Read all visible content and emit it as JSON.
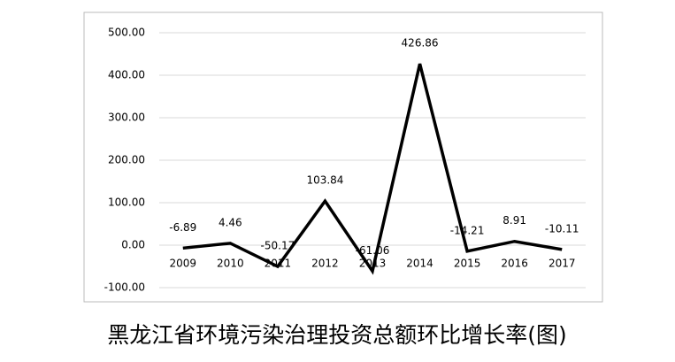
{
  "chart_data": {
    "type": "line",
    "title": "黑龙江省环境污染治理投资总额环比增长率(图)",
    "categories": [
      "2009",
      "2010",
      "2011",
      "2012",
      "2013",
      "2014",
      "2015",
      "2016",
      "2017"
    ],
    "values": [
      -6.89,
      4.46,
      -50.17,
      103.84,
      -61.06,
      426.86,
      -14.21,
      8.91,
      -10.11
    ],
    "color": "#000000",
    "ylim": [
      -100,
      500
    ],
    "yticks": [
      {
        "value": -100,
        "label": "-100.00"
      },
      {
        "value": 0,
        "label": "0.00"
      },
      {
        "value": 100,
        "label": "100.00"
      },
      {
        "value": 200,
        "label": "200.00"
      },
      {
        "value": 300,
        "label": "300.00"
      },
      {
        "value": 400,
        "label": "400.00"
      },
      {
        "value": 500,
        "label": "500.00"
      }
    ],
    "grid": true
  }
}
